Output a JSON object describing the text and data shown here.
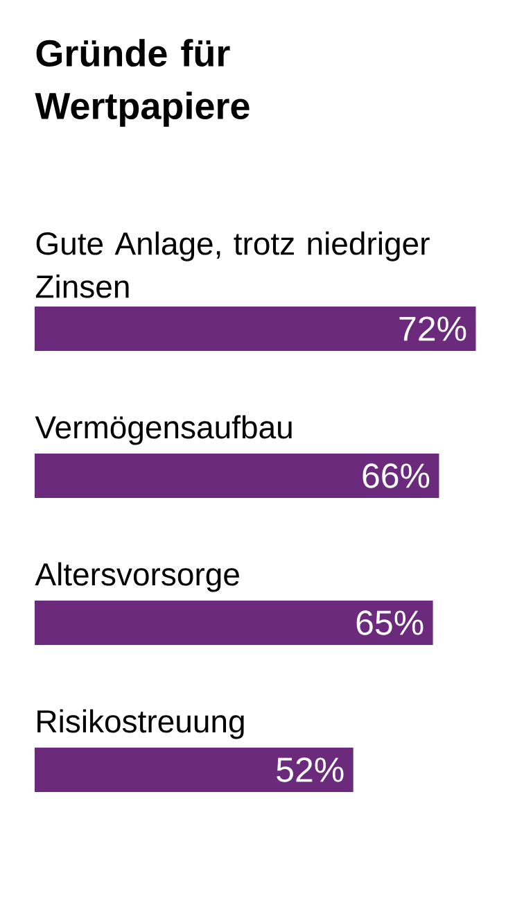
{
  "chart_data": {
    "type": "bar",
    "orientation": "horizontal",
    "title": "Gründe für Wertpapiere",
    "categories": [
      "Gute Anlage, trotz niedriger Zinsen",
      "Vermögensaufbau",
      "Altersvorsorge",
      "Risikostreuung"
    ],
    "values": [
      72,
      66,
      65,
      52
    ],
    "value_labels": [
      "72%",
      "66%",
      "65%",
      "52%"
    ],
    "color": "#6c2a7c"
  }
}
